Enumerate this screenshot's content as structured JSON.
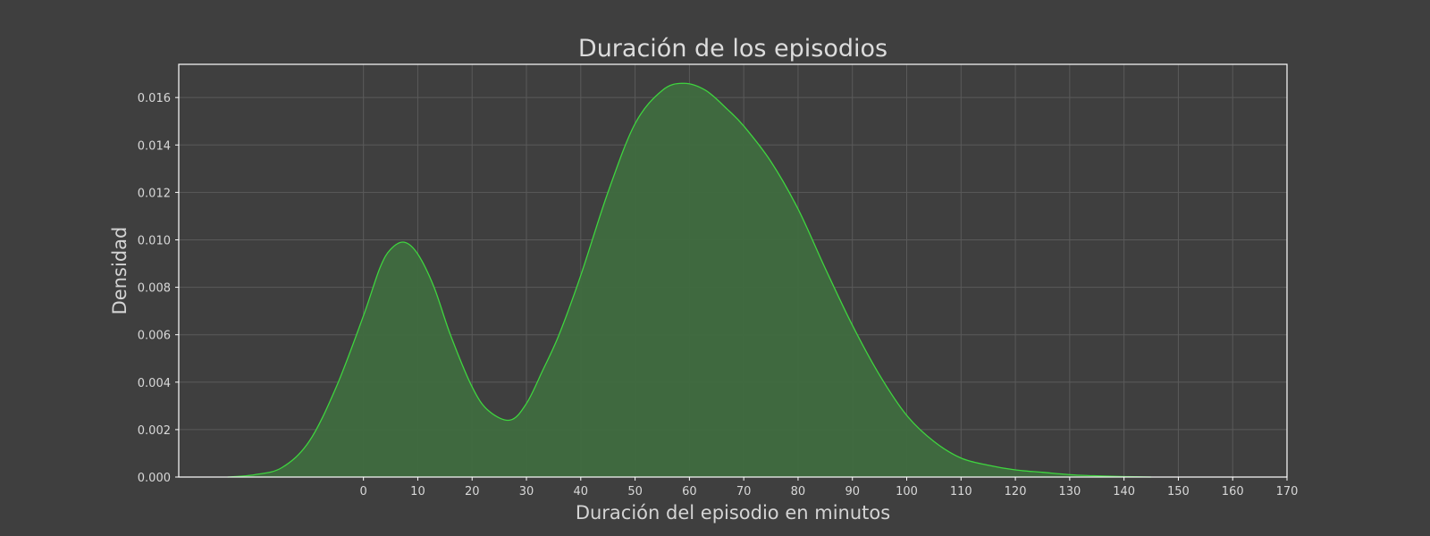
{
  "chart_data": {
    "type": "area",
    "title": "Duración de los episodios",
    "xlabel": "Duración del episodio en minutos",
    "ylabel": "Densidad",
    "xlim": [
      -34,
      170
    ],
    "ylim": [
      0,
      0.0174
    ],
    "x_ticks": [
      0,
      10,
      20,
      30,
      40,
      50,
      60,
      70,
      80,
      90,
      100,
      110,
      120,
      130,
      140,
      150,
      160,
      170
    ],
    "y_ticks": [
      0.0,
      0.002,
      0.004,
      0.006,
      0.008,
      0.01,
      0.012,
      0.014,
      0.016
    ],
    "y_tick_labels": [
      "0.000",
      "0.002",
      "0.004",
      "0.006",
      "0.008",
      "0.010",
      "0.012",
      "0.014",
      "0.016"
    ],
    "grid": true,
    "line_color": "#3fd43f",
    "fill_color": "#3f6b3f",
    "background_color": "#3f3f3f",
    "series": [
      {
        "x": [
          -25,
          -20,
          -15,
          -10,
          -5,
          0,
          3,
          5,
          7.5,
          10,
          13,
          16,
          20,
          23,
          27,
          30,
          33,
          36,
          40,
          45,
          50,
          55,
          59,
          63,
          67,
          70,
          75,
          80,
          85,
          90,
          95,
          100,
          105,
          110,
          115,
          120,
          125,
          130,
          135,
          140,
          145
        ],
        "y": [
          0.0,
          0.0001,
          0.0004,
          0.0015,
          0.0038,
          0.0068,
          0.0088,
          0.0096,
          0.0099,
          0.0094,
          0.008,
          0.006,
          0.0038,
          0.0028,
          0.0024,
          0.0031,
          0.0045,
          0.006,
          0.0085,
          0.012,
          0.0149,
          0.0163,
          0.0166,
          0.0163,
          0.0155,
          0.0148,
          0.0133,
          0.0113,
          0.0088,
          0.0064,
          0.0043,
          0.0026,
          0.0015,
          0.0008,
          0.0005,
          0.0003,
          0.0002,
          0.0001,
          5e-05,
          2e-05,
          0.0
        ]
      }
    ]
  }
}
